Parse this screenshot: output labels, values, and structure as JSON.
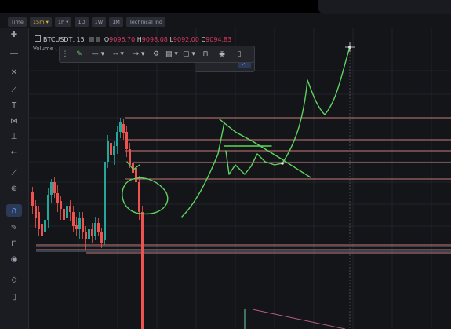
{
  "timeframes": [
    {
      "label": "Time",
      "active": false
    },
    {
      "label": "15m ▾",
      "active": true
    },
    {
      "label": "1h ▾",
      "active": false
    },
    {
      "label": "1D",
      "active": false
    },
    {
      "label": "1W",
      "active": false
    },
    {
      "label": "1M",
      "active": false
    },
    {
      "label": "Technical Ind",
      "active": false
    }
  ],
  "symbol": {
    "name": "BTCUSDT, 15",
    "open_label": "O",
    "open": "9096.70",
    "high_label": "H",
    "high": "9098.08",
    "low_label": "L",
    "low": "9092.00",
    "close_label": "C",
    "close": "9094.83"
  },
  "volume_label": "Volume (",
  "left_tools": [
    "crosshair-icon",
    "horizontal-line-icon",
    "fibonacci-icon",
    "trend-line-icon",
    "text-icon",
    "pattern-icon",
    "measure-icon",
    "arrow-left-icon",
    "ruler-icon",
    "zoom-icon",
    "magnet-icon",
    "pencil-lock-icon",
    "lock-icon",
    "eye-icon",
    "layers-icon",
    "trash-icon"
  ],
  "drawing_toolbar": [
    "drag-handle-icon",
    "pen-color-icon",
    "line-width-icon",
    "line-style-icon",
    "line-end-icon",
    "settings-icon",
    "template-icon",
    "clone-icon",
    "lock-icon",
    "visibility-icon",
    "delete-icon"
  ],
  "colors": {
    "up": "#26a69a",
    "down": "#ef5350",
    "drawing": "#5fd35f",
    "level": "#c97a76",
    "accent": "#e6b23a"
  }
}
